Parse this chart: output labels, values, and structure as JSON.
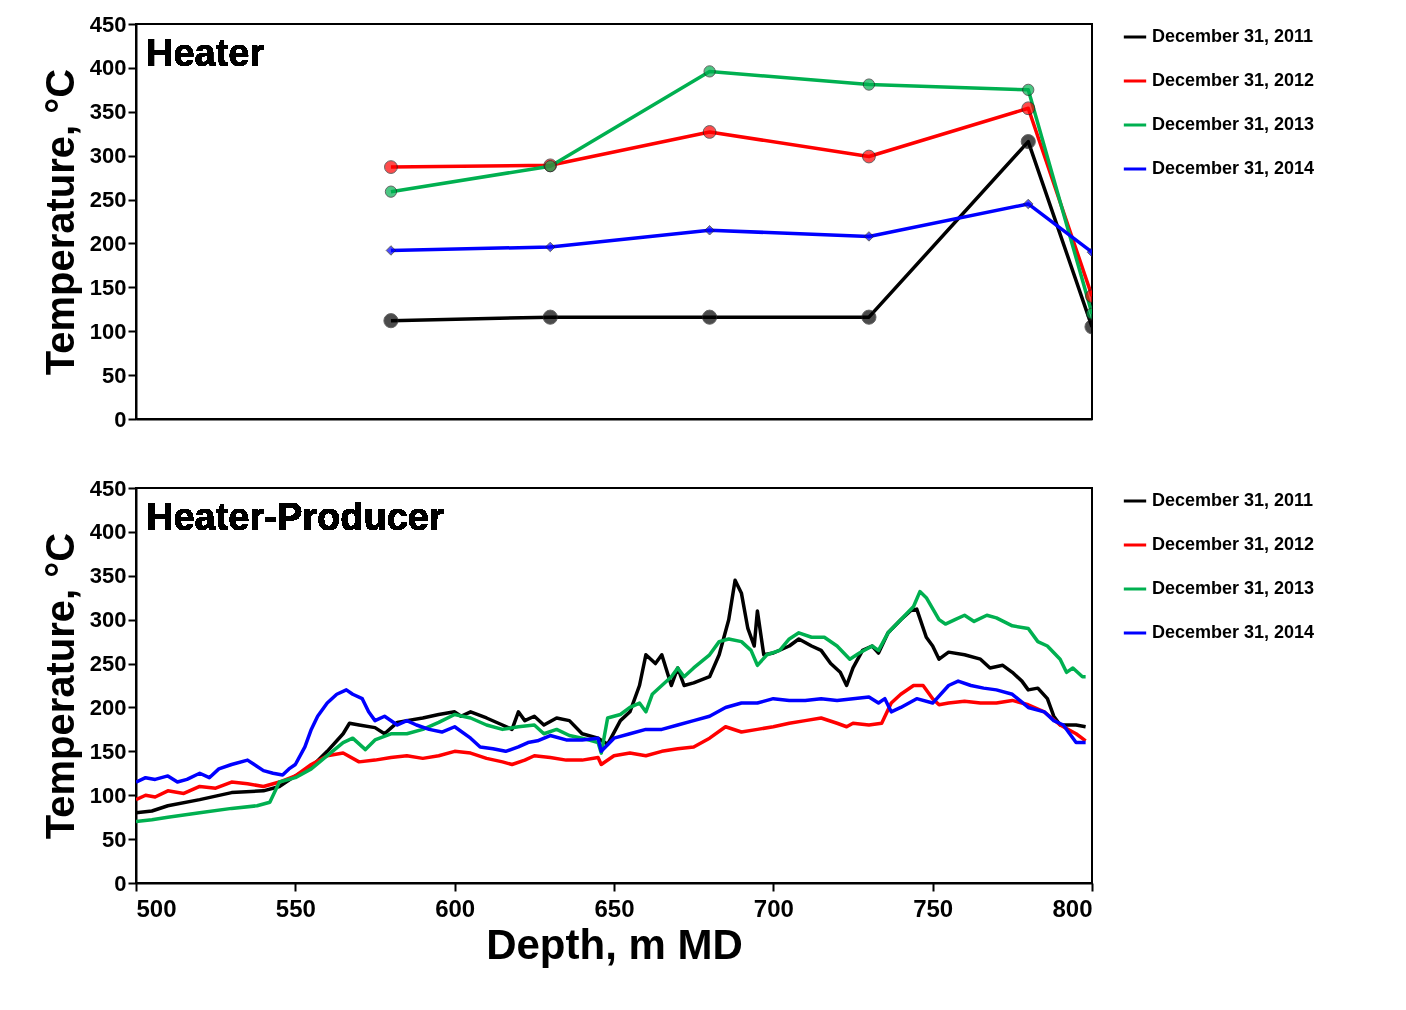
{
  "chart_data": [
    {
      "type": "line",
      "title": "Heater",
      "ylabel": "Temperature, °C",
      "xlim": [
        500,
        800
      ],
      "xticks": [
        500,
        550,
        600,
        650,
        700,
        750,
        800
      ],
      "ylim": [
        0,
        450
      ],
      "yticks": [
        0,
        50,
        100,
        150,
        200,
        250,
        300,
        350,
        400,
        450
      ],
      "grid": false,
      "legend": "right",
      "tick_labels": "y",
      "series": [
        {
          "name": "December 31, 2011",
          "color": "#000000",
          "marker": "circle",
          "x": [
            580,
            630,
            680,
            730,
            780,
            800
          ],
          "values": [
            112,
            116,
            116,
            116,
            316,
            105
          ]
        },
        {
          "name": "December 31, 2012",
          "color": "#ff0000",
          "marker": "circle",
          "x": [
            580,
            630,
            680,
            730,
            780,
            800
          ],
          "values": [
            287,
            289,
            327,
            299,
            354,
            140
          ]
        },
        {
          "name": "December 31, 2013",
          "color": "#00b050",
          "marker": "circle",
          "x": [
            580,
            630,
            680,
            730,
            780,
            800
          ],
          "values": [
            259,
            288,
            396,
            381,
            375,
            120
          ]
        },
        {
          "name": "December 31, 2014",
          "color": "#0000ff",
          "marker": "diamond",
          "x": [
            580,
            630,
            680,
            730,
            780,
            800
          ],
          "values": [
            192,
            196,
            215,
            208,
            245,
            190
          ]
        }
      ]
    },
    {
      "type": "line",
      "title": "Heater-Producer",
      "xlabel": "Depth, m MD",
      "ylabel": "Temperature, °C",
      "xlim": [
        500,
        800
      ],
      "xticks": [
        500,
        550,
        600,
        650,
        700,
        750,
        800
      ],
      "ylim": [
        0,
        450
      ],
      "yticks": [
        0,
        50,
        100,
        150,
        200,
        250,
        300,
        350,
        400,
        450
      ],
      "grid": false,
      "legend": "right",
      "series": [
        {
          "name": "December 31, 2011",
          "color": "#000000",
          "x": [
            500,
            505,
            510,
            520,
            530,
            540,
            545,
            550,
            555,
            560,
            565,
            567,
            570,
            575,
            578,
            582,
            585,
            590,
            595,
            600,
            602,
            605,
            610,
            615,
            618,
            620,
            622,
            625,
            628,
            632,
            636,
            640,
            645,
            648,
            652,
            655,
            658,
            660,
            663,
            665,
            668,
            670,
            672,
            675,
            680,
            683,
            686,
            688,
            690,
            692,
            694,
            695,
            697,
            700,
            705,
            708,
            712,
            715,
            718,
            721,
            723,
            725,
            728,
            731,
            733,
            736,
            740,
            743,
            745,
            748,
            750,
            752,
            755,
            760,
            765,
            768,
            772,
            775,
            778,
            780,
            783,
            786,
            788,
            790,
            795,
            798
          ],
          "values": [
            80,
            82,
            88,
            95,
            103,
            105,
            110,
            122,
            132,
            150,
            170,
            182,
            180,
            177,
            170,
            183,
            185,
            188,
            192,
            195,
            190,
            195,
            188,
            180,
            175,
            195,
            185,
            190,
            180,
            188,
            185,
            170,
            165,
            158,
            185,
            195,
            225,
            260,
            250,
            260,
            225,
            245,
            225,
            228,
            235,
            260,
            300,
            345,
            330,
            290,
            270,
            310,
            260,
            262,
            270,
            278,
            270,
            265,
            250,
            240,
            225,
            245,
            265,
            270,
            262,
            285,
            300,
            310,
            312,
            280,
            270,
            255,
            263,
            260,
            255,
            245,
            248,
            240,
            230,
            220,
            222,
            210,
            190,
            180,
            180,
            178
          ]
        },
        {
          "name": "December 31, 2012",
          "color": "#ff0000",
          "x": [
            500,
            503,
            506,
            510,
            515,
            520,
            525,
            530,
            535,
            540,
            545,
            550,
            555,
            560,
            565,
            570,
            575,
            580,
            585,
            590,
            595,
            600,
            605,
            610,
            615,
            618,
            622,
            625,
            630,
            635,
            640,
            645,
            646,
            650,
            655,
            660,
            665,
            670,
            675,
            680,
            685,
            690,
            695,
            700,
            705,
            710,
            715,
            720,
            723,
            725,
            730,
            734,
            737,
            740,
            744,
            747,
            750,
            752,
            755,
            760,
            765,
            770,
            775,
            780,
            785,
            790,
            795,
            798
          ],
          "values": [
            95,
            100,
            98,
            105,
            102,
            110,
            108,
            115,
            113,
            110,
            115,
            122,
            135,
            145,
            148,
            138,
            140,
            143,
            145,
            142,
            145,
            150,
            148,
            142,
            138,
            135,
            140,
            145,
            143,
            140,
            140,
            143,
            135,
            145,
            148,
            145,
            150,
            153,
            155,
            165,
            178,
            172,
            175,
            178,
            182,
            185,
            188,
            182,
            178,
            182,
            180,
            182,
            205,
            215,
            225,
            225,
            210,
            203,
            205,
            207,
            205,
            205,
            208,
            203,
            195,
            180,
            170,
            162
          ]
        },
        {
          "name": "December 31, 2013",
          "color": "#00b050",
          "x": [
            500,
            505,
            510,
            520,
            530,
            538,
            542,
            545,
            550,
            555,
            560,
            565,
            568,
            572,
            575,
            580,
            585,
            590,
            595,
            600,
            605,
            610,
            615,
            620,
            625,
            628,
            632,
            636,
            640,
            645,
            646,
            648,
            652,
            655,
            658,
            660,
            662,
            665,
            668,
            670,
            672,
            675,
            680,
            683,
            686,
            690,
            693,
            695,
            698,
            702,
            705,
            708,
            712,
            716,
            720,
            724,
            727,
            731,
            733,
            736,
            740,
            744,
            746,
            748,
            752,
            754,
            757,
            760,
            763,
            767,
            770,
            775,
            780,
            783,
            786,
            790,
            792,
            794,
            797,
            798
          ],
          "values": [
            70,
            72,
            75,
            80,
            85,
            88,
            92,
            115,
            120,
            130,
            145,
            160,
            165,
            152,
            163,
            170,
            170,
            175,
            183,
            192,
            188,
            180,
            175,
            178,
            180,
            170,
            175,
            168,
            165,
            160,
            148,
            188,
            192,
            200,
            205,
            195,
            215,
            225,
            235,
            245,
            235,
            245,
            260,
            275,
            278,
            275,
            265,
            248,
            260,
            265,
            278,
            285,
            280,
            280,
            270,
            255,
            262,
            270,
            265,
            285,
            300,
            315,
            332,
            325,
            300,
            295,
            300,
            305,
            298,
            305,
            302,
            293,
            290,
            275,
            270,
            255,
            240,
            245,
            235,
            235
          ]
        },
        {
          "name": "December 31, 2014",
          "color": "#0000ff",
          "x": [
            500,
            503,
            506,
            510,
            513,
            516,
            520,
            523,
            526,
            530,
            535,
            540,
            543,
            546,
            548,
            550,
            553,
            555,
            557,
            560,
            563,
            566,
            568,
            571,
            573,
            575,
            578,
            582,
            585,
            588,
            592,
            596,
            600,
            605,
            608,
            612,
            616,
            620,
            623,
            626,
            630,
            635,
            640,
            645,
            646,
            650,
            655,
            660,
            665,
            670,
            675,
            680,
            685,
            690,
            695,
            700,
            705,
            710,
            715,
            720,
            725,
            730,
            733,
            735,
            737,
            740,
            745,
            750,
            755,
            758,
            762,
            766,
            770,
            775,
            780,
            785,
            788,
            791,
            793,
            795,
            798
          ],
          "values": [
            115,
            120,
            118,
            122,
            115,
            118,
            125,
            120,
            130,
            135,
            140,
            128,
            125,
            123,
            130,
            135,
            155,
            175,
            190,
            205,
            215,
            220,
            215,
            210,
            195,
            185,
            190,
            180,
            185,
            180,
            175,
            172,
            178,
            165,
            155,
            153,
            150,
            155,
            160,
            162,
            168,
            163,
            163,
            165,
            150,
            165,
            170,
            175,
            175,
            180,
            185,
            190,
            200,
            205,
            205,
            210,
            208,
            208,
            210,
            208,
            210,
            212,
            205,
            210,
            195,
            200,
            210,
            205,
            225,
            230,
            225,
            222,
            220,
            215,
            200,
            195,
            185,
            180,
            170,
            160,
            160
          ]
        }
      ]
    }
  ]
}
